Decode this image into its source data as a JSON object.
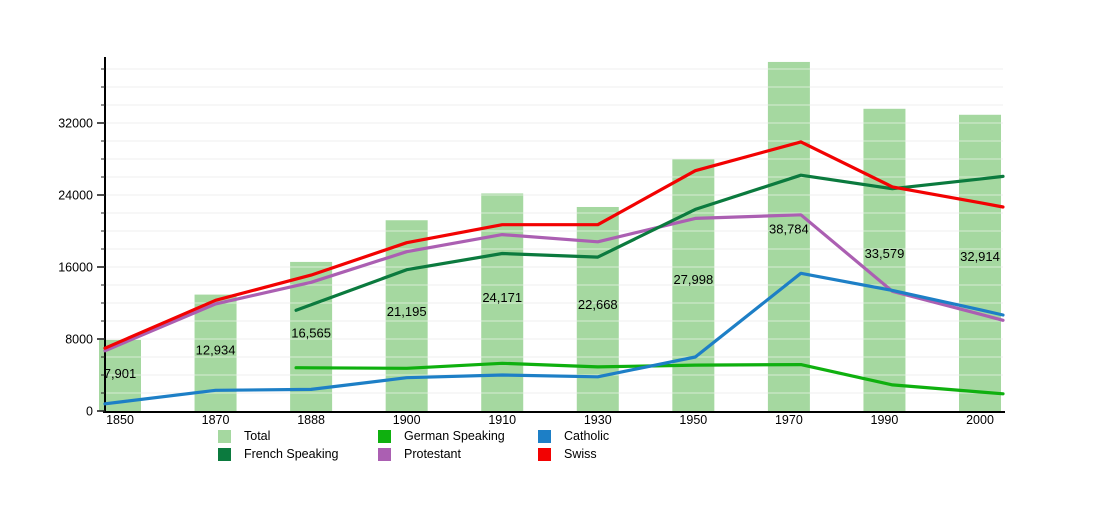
{
  "chart_data": {
    "type": "bar",
    "note": "combo bar + line population chart",
    "categories": [
      "1850",
      "1870",
      "1888",
      "1900",
      "1910",
      "1930",
      "1950",
      "1970",
      "1990",
      "2000"
    ],
    "bar_series": {
      "name": "Total",
      "values": [
        7901,
        12934,
        16565,
        21195,
        24171,
        22668,
        27998,
        38784,
        33579,
        32914
      ],
      "labels": [
        "7,901",
        "12,934",
        "16,565",
        "21,195",
        "24,171",
        "22,668",
        "27,998",
        "38,784",
        "33,579",
        "32,914"
      ],
      "color": "#a5d8a0"
    },
    "line_series": [
      {
        "name": "German Speaking",
        "color": "#0fb00f",
        "values": [
          null,
          null,
          4800,
          4750,
          5300,
          4900,
          5100,
          5150,
          2900,
          2100
        ]
      },
      {
        "name": "Protestant",
        "color": "#ab5fb2",
        "values": [
          7400,
          11900,
          14300,
          17700,
          19600,
          18800,
          21400,
          21800,
          13300,
          10700
        ]
      },
      {
        "name": "French Speaking",
        "color": "#0b7a3e",
        "values": [
          null,
          null,
          11800,
          15700,
          17500,
          17100,
          22400,
          26200,
          24700,
          25800
        ]
      },
      {
        "name": "Catholic",
        "color": "#1d7fc6",
        "values": [
          1000,
          2300,
          2400,
          3700,
          4000,
          3800,
          6000,
          15300,
          13400,
          11200
        ]
      },
      {
        "name": "Swiss",
        "color": "#f20202",
        "values": [
          7700,
          12300,
          15100,
          18700,
          20700,
          20700,
          26700,
          29900,
          24900,
          23100
        ]
      }
    ],
    "ylim": [
      0,
      39100
    ],
    "yticks": [
      0,
      8000,
      16000,
      24000,
      32000
    ],
    "ytick_labels": [
      "0",
      "8000",
      "16000",
      "24000",
      "32000"
    ],
    "grid_step": 2000,
    "grid_on": true,
    "legend_position": "bottom",
    "title": "",
    "xlabel": "",
    "ylabel": ""
  },
  "legend": {
    "rows": [
      [
        {
          "label": "Total",
          "color": "#a5d8a0"
        },
        {
          "label": "German Speaking",
          "color": "#0fb00f"
        },
        {
          "label": "Catholic",
          "color": "#1d7fc6"
        }
      ],
      [
        {
          "label": "French Speaking",
          "color": "#0b7a3e"
        },
        {
          "label": "Protestant",
          "color": "#ab5fb2"
        },
        {
          "label": "Swiss",
          "color": "#f20202"
        }
      ]
    ]
  }
}
